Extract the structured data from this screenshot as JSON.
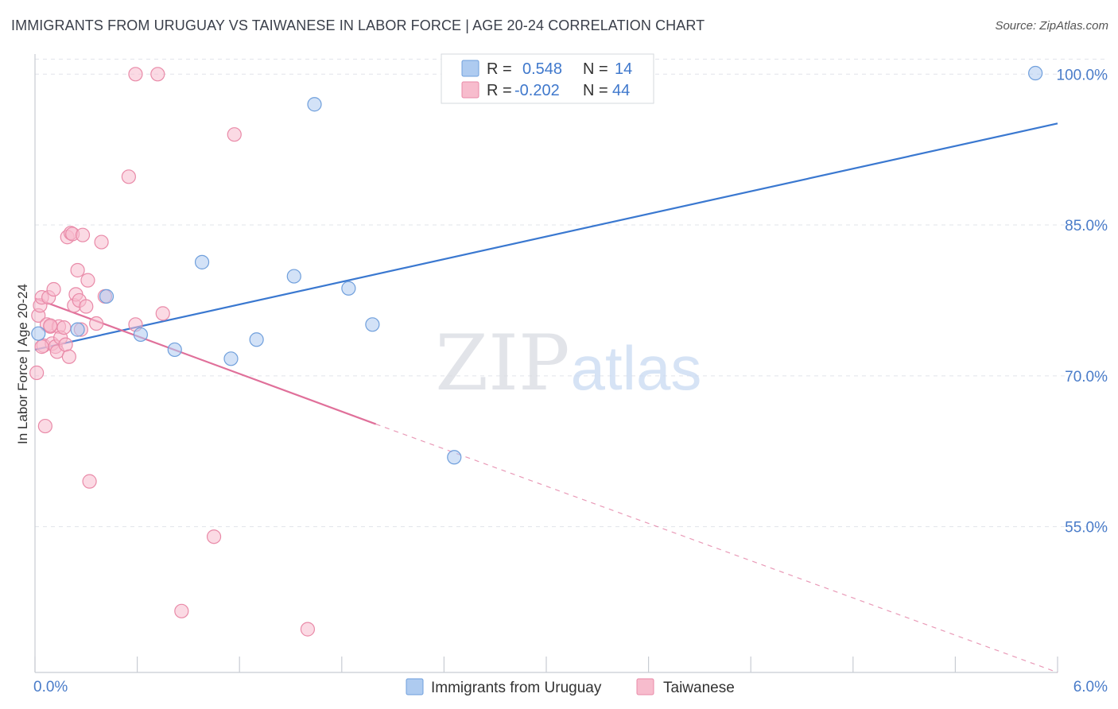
{
  "title": "IMMIGRANTS FROM URUGUAY VS TAIWANESE IN LABOR FORCE | AGE 20-24 CORRELATION CHART",
  "source": "Source: ZipAtlas.com",
  "watermark": {
    "zip": "ZIP",
    "atlas": "atlas"
  },
  "colors": {
    "blue_fill": "#aecbf0",
    "blue_stroke": "#6f9fdc",
    "blue_line": "#3a78d0",
    "pink_fill": "#f7bccd",
    "pink_stroke": "#e98aa8",
    "pink_line": "#e0709a",
    "tick_text": "#4a7cc9",
    "grid": "#e1e4ea"
  },
  "chart_data": {
    "type": "scatter",
    "title": "IMMIGRANTS FROM URUGUAY VS TAIWANESE IN LABOR FORCE | AGE 20-24 CORRELATION CHART",
    "xlabel": "",
    "ylabel": "In Labor Force | Age 20-24",
    "xlim": [
      0,
      6
    ],
    "ylim": [
      40.5,
      102
    ],
    "x_tick_labels": [
      "0.0%",
      "6.0%"
    ],
    "y_ticks": [
      55,
      70,
      85,
      100
    ],
    "y_tick_labels": [
      "55.0%",
      "70.0%",
      "85.0%",
      "100.0%"
    ],
    "grid": true,
    "legend_position": "top-center",
    "stats_legend": [
      {
        "r_label": "R =",
        "r_value": "0.548",
        "n_label": "N =",
        "n_value": "14"
      },
      {
        "r_label": "R =",
        "r_value": "-0.202",
        "n_label": "N =",
        "n_value": "44"
      }
    ],
    "series": [
      {
        "name": "Immigrants from Uruguay",
        "color": "blue",
        "points": [
          {
            "x": 0.02,
            "y": 74.2
          },
          {
            "x": 0.25,
            "y": 74.6
          },
          {
            "x": 0.42,
            "y": 77.9
          },
          {
            "x": 0.62,
            "y": 74.1
          },
          {
            "x": 0.82,
            "y": 72.6
          },
          {
            "x": 0.98,
            "y": 81.3
          },
          {
            "x": 1.15,
            "y": 71.7
          },
          {
            "x": 1.3,
            "y": 73.6
          },
          {
            "x": 1.52,
            "y": 79.9
          },
          {
            "x": 1.64,
            "y": 97.0
          },
          {
            "x": 1.84,
            "y": 78.7
          },
          {
            "x": 1.98,
            "y": 75.1
          },
          {
            "x": 2.46,
            "y": 61.9
          },
          {
            "x": 5.87,
            "y": 100.1
          }
        ],
        "trend": {
          "x0": 0.0,
          "y0": 72.6,
          "x1": 6.0,
          "y1": 95.1
        }
      },
      {
        "name": "Taiwanese",
        "color": "pink",
        "points": [
          {
            "x": 0.01,
            "y": 70.3
          },
          {
            "x": 0.02,
            "y": 76.0
          },
          {
            "x": 0.03,
            "y": 77.0
          },
          {
            "x": 0.04,
            "y": 77.8
          },
          {
            "x": 0.05,
            "y": 73.0
          },
          {
            "x": 0.06,
            "y": 65.0
          },
          {
            "x": 0.07,
            "y": 75.1
          },
          {
            "x": 0.08,
            "y": 77.8
          },
          {
            "x": 0.09,
            "y": 74.9
          },
          {
            "x": 0.1,
            "y": 73.2
          },
          {
            "x": 0.11,
            "y": 78.6
          },
          {
            "x": 0.12,
            "y": 72.9
          },
          {
            "x": 0.13,
            "y": 72.4
          },
          {
            "x": 0.14,
            "y": 74.9
          },
          {
            "x": 0.15,
            "y": 73.8
          },
          {
            "x": 0.17,
            "y": 74.8
          },
          {
            "x": 0.18,
            "y": 73.1
          },
          {
            "x": 0.19,
            "y": 83.8
          },
          {
            "x": 0.2,
            "y": 71.9
          },
          {
            "x": 0.21,
            "y": 84.2
          },
          {
            "x": 0.22,
            "y": 84.1
          },
          {
            "x": 0.23,
            "y": 77.0
          },
          {
            "x": 0.24,
            "y": 78.1
          },
          {
            "x": 0.25,
            "y": 80.5
          },
          {
            "x": 0.26,
            "y": 77.5
          },
          {
            "x": 0.27,
            "y": 74.6
          },
          {
            "x": 0.28,
            "y": 84.0
          },
          {
            "x": 0.3,
            "y": 76.9
          },
          {
            "x": 0.31,
            "y": 79.5
          },
          {
            "x": 0.32,
            "y": 59.5
          },
          {
            "x": 0.36,
            "y": 75.2
          },
          {
            "x": 0.39,
            "y": 83.3
          },
          {
            "x": 0.41,
            "y": 77.9
          },
          {
            "x": 0.55,
            "y": 89.8
          },
          {
            "x": 0.59,
            "y": 100.0
          },
          {
            "x": 0.59,
            "y": 75.1
          },
          {
            "x": 0.72,
            "y": 100.0
          },
          {
            "x": 0.75,
            "y": 76.2
          },
          {
            "x": 0.86,
            "y": 46.6
          },
          {
            "x": 1.05,
            "y": 54.0
          },
          {
            "x": 1.17,
            "y": 94.0
          },
          {
            "x": 1.6,
            "y": 44.8
          },
          {
            "x": 0.04,
            "y": 72.9
          },
          {
            "x": 0.09,
            "y": 75.0
          }
        ],
        "trend": {
          "x0": 0.0,
          "y0": 77.7,
          "x1": 2.0,
          "y1": 65.2
        },
        "trend_dashed": {
          "x0": 2.0,
          "y0": 65.2,
          "x1": 6.0,
          "y1": 40.5
        }
      }
    ]
  }
}
